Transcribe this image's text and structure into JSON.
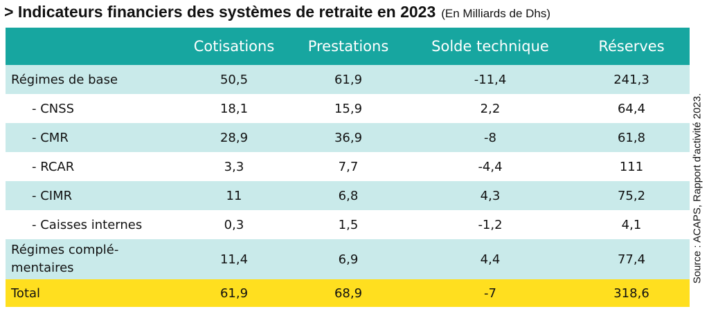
{
  "title": {
    "main": "> Indicateurs financiers des systèmes de retraite en 2023",
    "sub": "(En Milliards de Dhs)"
  },
  "table": {
    "headers": [
      "",
      "Cotisations",
      "Prestations",
      "Solde technique",
      "Réserves"
    ],
    "rows": [
      {
        "label": "Régimes de base",
        "values": [
          "50,5",
          "61,9",
          "-11,4",
          "241,3"
        ]
      },
      {
        "label": "- CNSS",
        "values": [
          "18,1",
          "15,9",
          "2,2",
          "64,4"
        ]
      },
      {
        "label": "- CMR",
        "values": [
          "28,9",
          "36,9",
          "-8",
          "61,8"
        ]
      },
      {
        "label": "- RCAR",
        "values": [
          "3,3",
          "7,7",
          "-4,4",
          "111"
        ]
      },
      {
        "label": "- CIMR",
        "values": [
          "11",
          "6,8",
          "4,3",
          "75,2"
        ]
      },
      {
        "label": "- Caisses internes",
        "values": [
          "0,3",
          "1,5",
          "-1,2",
          "4,1"
        ]
      },
      {
        "label": "Régimes complé-mentaires",
        "label_line1": "Régimes complé-",
        "label_line2": "mentaires",
        "values": [
          "11,4",
          "6,9",
          "4,4",
          "77,4"
        ]
      },
      {
        "label": "Total",
        "values": [
          "61,9",
          "68,9",
          "-7",
          "318,6"
        ]
      }
    ]
  },
  "source": "Source : ACAPS, Rapport d'activité 2023.",
  "colors": {
    "header_bg": "#17a6a0",
    "shaded_row_bg": "#c9eaea",
    "total_bg": "#ffdf1f"
  }
}
